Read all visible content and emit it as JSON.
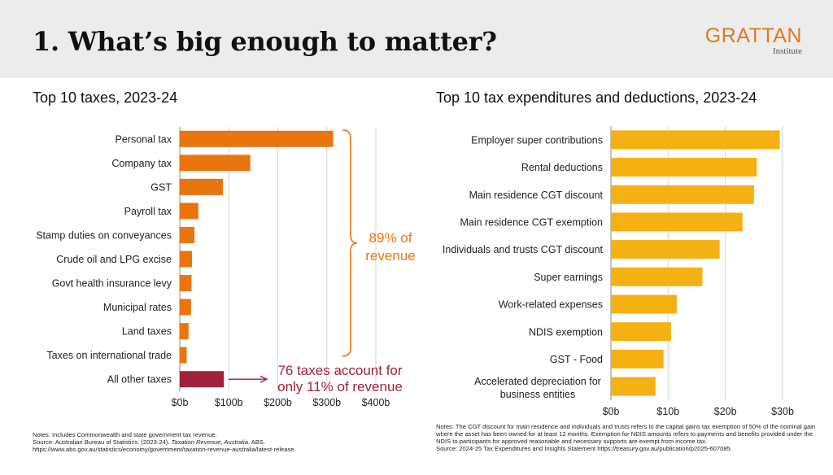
{
  "header": {
    "title": "1. What’s big enough to matter?",
    "logo_main": "GRATTAN",
    "logo_sub": "Institute"
  },
  "chart_data": [
    {
      "type": "bar",
      "orientation": "horizontal",
      "title": "Top 10 taxes, 2023-24",
      "categories": [
        "Personal tax",
        "Company tax",
        "GST",
        "Payroll tax",
        "Stamp duties on conveyances",
        "Crude oil and LPG excise",
        "Govt health insurance levy",
        "Municipal rates",
        "Land taxes",
        "Taxes on international trade",
        "All other taxes"
      ],
      "values": [
        313,
        144,
        88,
        38,
        30,
        25,
        24,
        23,
        18,
        14,
        90
      ],
      "unit": "$b",
      "xlim": [
        0,
        400
      ],
      "ticks": [
        0,
        100,
        200,
        300,
        400
      ],
      "tick_labels": [
        "$0b",
        "$100b",
        "$200b",
        "$300b",
        "$400b"
      ],
      "grid": true,
      "colors": {
        "bar": "#e8750f",
        "highlight": "#a1213b",
        "grid": "#d6d6d6",
        "annotation_orange": "#e8750f",
        "annotation_red": "#a1213b"
      },
      "annotations": {
        "brace_line1": "89% of",
        "brace_line2": "revenue",
        "other_line1": "76 taxes account for",
        "other_line2": "only 11% of revenue"
      }
    },
    {
      "type": "bar",
      "orientation": "horizontal",
      "title": "Top 10 tax expenditures and deductions, 2023-24",
      "categories": [
        "Employer super contributions",
        "Rental deductions",
        "Main residence CGT discount",
        "Main residence CGT exemption",
        "Individuals and trusts CGT discount",
        "Super earnings",
        "Work-related expenses",
        "NDIS exemption",
        "GST - Food",
        "Accelerated depreciation for business entities"
      ],
      "values": [
        29.5,
        25.5,
        25.0,
        23.0,
        19.0,
        16.0,
        11.5,
        10.5,
        9.2,
        7.8
      ],
      "unit": "$b",
      "xlim": [
        0,
        30
      ],
      "ticks": [
        0,
        10,
        20,
        30
      ],
      "tick_labels": [
        "$0b",
        "$10b",
        "$20b",
        "$30b"
      ],
      "grid": true,
      "colors": {
        "bar": "#f5b111",
        "grid": "#d6d6d6"
      }
    }
  ],
  "notes_left": {
    "line1": "Notes: Includes Commonwealth and state government tax revenue.",
    "line2_pre": "Source: Australian Bureau of Statistics. (2023-24). ",
    "line2_italic": "Taxation Revenue, Australia",
    "line2_post": ". ABS.",
    "line3": "https://www.abs.gov.au/statistics/economy/government/taxation-revenue-australia/latest-release."
  },
  "notes_right": {
    "line1": "Notes: The CGT discount for main residence and individuals and trusts refers to the capital gains tax exemption of 50% of the nominal gain where the asset has been owned for at least 12 months. Exemption for NDIS amounts refers to payments and benefits provided under the NDIS to participants for approved reasonable and necessary supports are exempt from income tax.",
    "line2": "Source: 2024-25 Tax Expenditures and Insights Statement https://treasury.gov.au/publication/p2025-607085."
  }
}
